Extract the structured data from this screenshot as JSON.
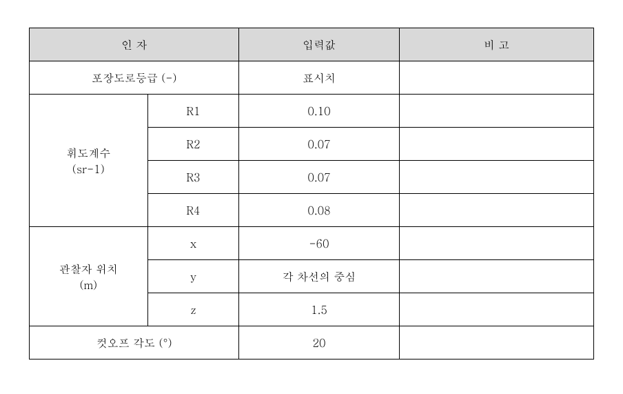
{
  "table": {
    "headers": {
      "factor": "인 자",
      "input": "입력값",
      "note": "비  고"
    },
    "rows": {
      "roadGrade": {
        "label": "포장도로등급 (-)",
        "value": "표시치",
        "note": ""
      },
      "luminance": {
        "groupLabel": "휘도계수\n(sr-1)",
        "items": [
          {
            "key": "R1",
            "value": "0.10",
            "note": ""
          },
          {
            "key": "R2",
            "value": "0.07",
            "note": ""
          },
          {
            "key": "R3",
            "value": "0.07",
            "note": ""
          },
          {
            "key": "R4",
            "value": "0.08",
            "note": ""
          }
        ]
      },
      "observer": {
        "groupLabel": "관찰자 위치\n(m)",
        "items": [
          {
            "key": "x",
            "value": "-60",
            "note": ""
          },
          {
            "key": "y",
            "value": "각 차선의 중심",
            "note": ""
          },
          {
            "key": "z",
            "value": "1.5",
            "note": ""
          }
        ]
      },
      "cutoff": {
        "label": "컷오프 각도 (°)",
        "value": "20",
        "note": ""
      }
    }
  }
}
